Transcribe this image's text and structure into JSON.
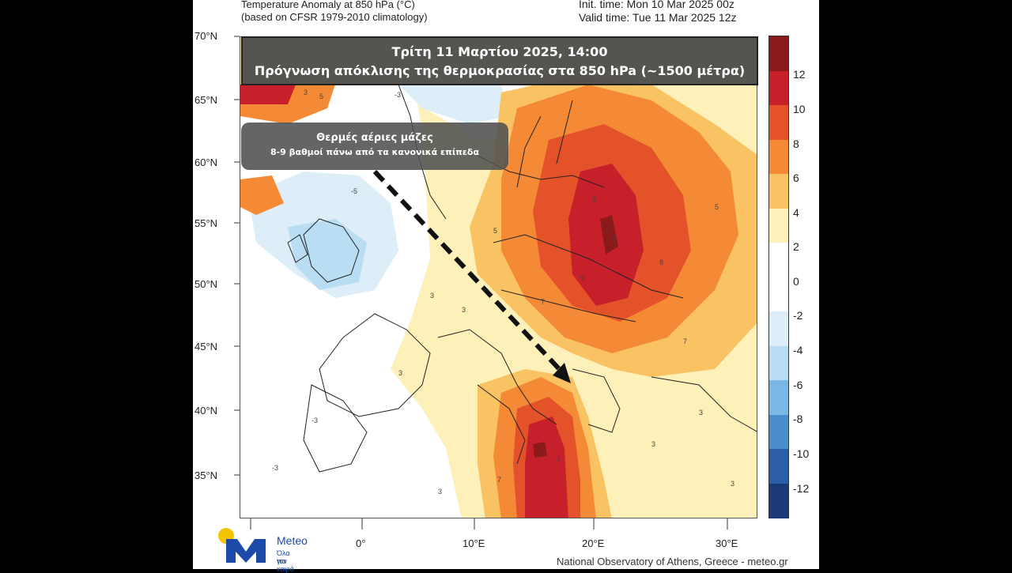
{
  "header": {
    "left_line1": "Temperature Anomaly at 850 hPa (°C)",
    "left_line2": "(based on CFSR 1979-2010 climatology)",
    "right_line1": "Init. time: Mon 10 Mar 2025 00z",
    "right_line2": "Valid time: Tue 11 Mar 2025 12z"
  },
  "overlay": {
    "title_line1": "Τρίτη 11 Μαρτίου 2025, 14:00",
    "title_line2": "Πρόγνωση απόκλισης της θερμοκρασίας στα 850 hPa (~1500 μέτρα)",
    "note_line1": "Θερμές αέριες μάζες",
    "note_line2": "8-9 βαθμοί πάνω από τα κανονικά επίπεδα"
  },
  "axes": {
    "lat_labels": [
      "70°N",
      "65°N",
      "60°N",
      "55°N",
      "50°N",
      "45°N",
      "40°N",
      "35°N"
    ],
    "lon_labels": [
      "0°",
      "10°E",
      "20°E",
      "30°E"
    ]
  },
  "legend": {
    "labels": [
      "12",
      "10",
      "8",
      "6",
      "4",
      "2",
      "0",
      "-2",
      "-4",
      "-6",
      "-8",
      "-10",
      "-12"
    ],
    "colors": [
      "#8b1a1a",
      "#c8202a",
      "#e4522a",
      "#f48a35",
      "#f9c263",
      "#fdf0b8",
      "#ffffff",
      "#ffffff",
      "#ddeef8",
      "#b9ddf2",
      "#7bb7e4",
      "#4a8fcc",
      "#2a5fa8",
      "#1c3a78"
    ]
  },
  "map_values": {
    "anomaly_labels": [
      "3",
      "-3",
      "5",
      "-5",
      "3",
      "3",
      "9",
      "9",
      "9",
      "8",
      "3",
      "3",
      "7",
      "7",
      "-3",
      "-3",
      "3",
      "3",
      "5",
      "5",
      "7",
      "7",
      "3"
    ]
  },
  "logo": {
    "brand": "Meteo",
    "tagline_1": "Όλα για",
    "tagline_2": "τον καιρό"
  },
  "credit": "National Observatory of Athens, Greece - meteo.gr"
}
